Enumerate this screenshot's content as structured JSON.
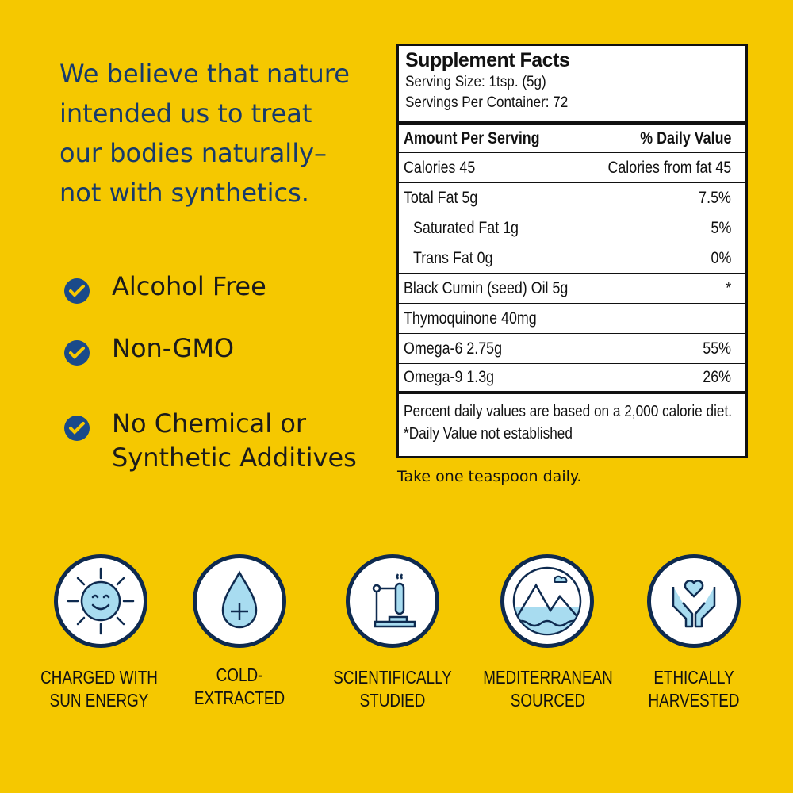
{
  "headline": [
    "We believe that nature",
    "intended us to treat",
    "our bodies naturally–",
    "not with synthetics."
  ],
  "checklist": [
    {
      "icon": "check-circle-icon",
      "lines": [
        "Alcohol Free"
      ]
    },
    {
      "icon": "check-circle-icon",
      "lines": [
        "Non-GMO"
      ]
    },
    {
      "icon": "check-circle-icon",
      "lines": [
        "No Chemical or",
        "Synthetic Additives"
      ]
    }
  ],
  "facts": {
    "title": "Supplement Facts",
    "serving_size": "Serving Size: 1tsp. (5g)",
    "servings_per_container": "Servings Per Container: 72",
    "header": {
      "left": "Amount Per Serving",
      "right": "% Daily Value"
    },
    "rows": [
      {
        "left": "Calories 45",
        "right": "Calories from fat 45"
      },
      {
        "left": "Total Fat 5g",
        "right": "7.5%"
      },
      {
        "left": "Saturated Fat 1g",
        "right": "5%"
      },
      {
        "left": "Trans Fat 0g",
        "right": "0%"
      },
      {
        "left": "Black Cumin (seed) Oil 5g",
        "right": "*"
      },
      {
        "left": "Thymoquinone 40mg",
        "right": ""
      },
      {
        "left": "Omega-6 2.75g",
        "right": "55%"
      },
      {
        "left": "Omega-9 1.3g",
        "right": "26%"
      }
    ],
    "footnote1": "Percent daily values are based on a 2,000 calorie diet.",
    "footnote2": "*Daily Value not established"
  },
  "directions": "Take one teaspoon daily.",
  "badges": [
    {
      "icon": "sun-icon",
      "lines": [
        "CHARGED WITH",
        "SUN ENERGY"
      ]
    },
    {
      "icon": "droplet-icon",
      "lines": [
        "COLD-",
        "EXTRACTED"
      ]
    },
    {
      "icon": "test-tube-icon",
      "lines": [
        "SCIENTIFICALLY",
        "STUDIED"
      ]
    },
    {
      "icon": "mountains-icon",
      "lines": [
        "MEDITERRANEAN",
        "SOURCED"
      ]
    },
    {
      "icon": "hands-heart-icon",
      "lines": [
        "ETHICALLY",
        "HARVESTED"
      ]
    }
  ],
  "colors": {
    "background": "#f5c800",
    "navy": "#173a6b",
    "icon_fill": "#a8dcf0"
  }
}
